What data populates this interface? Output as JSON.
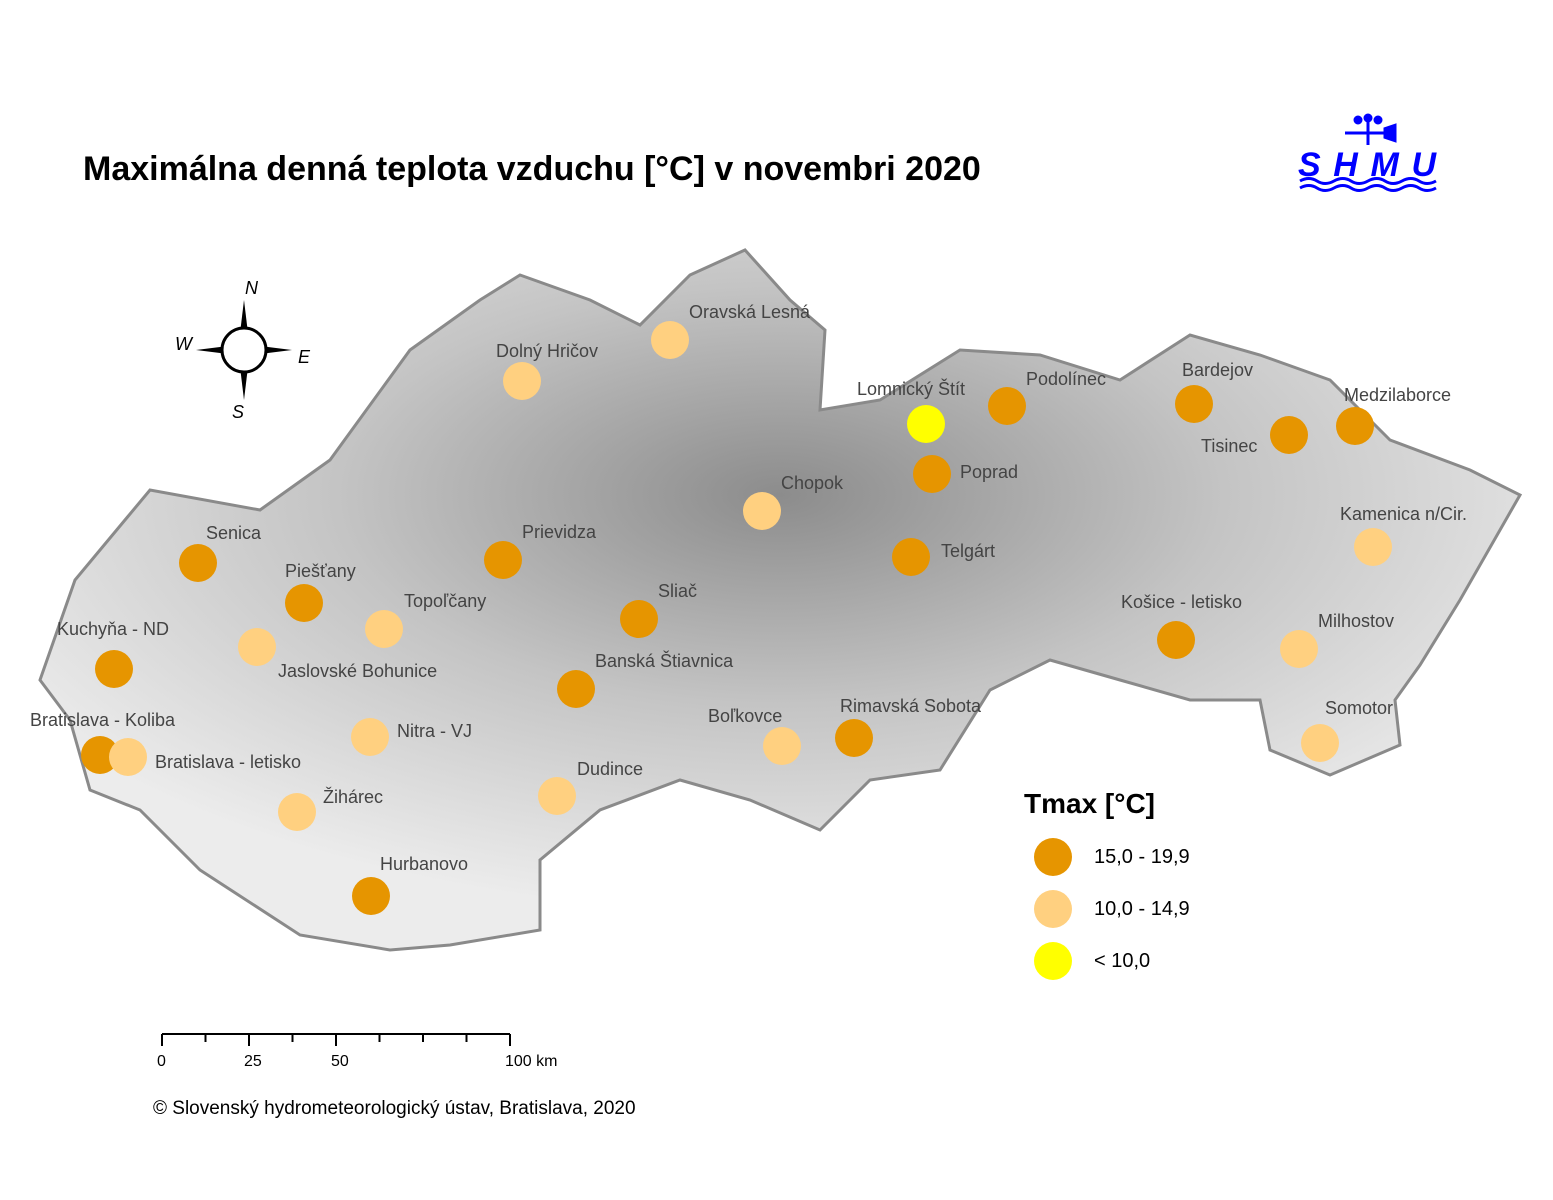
{
  "title": "Maximálna denná teplota vzduchu [°C] v novembri 2020",
  "logo_text": "SHMU",
  "compass": {
    "n": "N",
    "s": "S",
    "e": "E",
    "w": "W"
  },
  "colors": {
    "high": "#e69500",
    "mid": "#ffd080",
    "low": "#ffff00",
    "terrain": "#b5b5b5",
    "border": "#8a8a8a",
    "logo": "#0000ff"
  },
  "legend": {
    "title": "Tmax [°C]",
    "items": [
      {
        "label": "15,0 - 19,9",
        "category": "high"
      },
      {
        "label": "10,0 - 14,9",
        "category": "mid"
      },
      {
        "label": "< 10,0",
        "category": "low"
      }
    ]
  },
  "stations": [
    {
      "name": "Oravská Lesná",
      "category": "mid"
    },
    {
      "name": "Dolný Hričov",
      "category": "mid"
    },
    {
      "name": "Lomnický Štít",
      "category": "low"
    },
    {
      "name": "Podolínec",
      "category": "high"
    },
    {
      "name": "Bardejov",
      "category": "high"
    },
    {
      "name": "Tisinec",
      "category": "high"
    },
    {
      "name": "Medzilaborce",
      "category": "high"
    },
    {
      "name": "Poprad",
      "category": "high"
    },
    {
      "name": "Chopok",
      "category": "mid"
    },
    {
      "name": "Kamenica n/Cir.",
      "category": "mid"
    },
    {
      "name": "Prievidza",
      "category": "high"
    },
    {
      "name": "Senica",
      "category": "high"
    },
    {
      "name": "Telgárt",
      "category": "high"
    },
    {
      "name": "Piešťany",
      "category": "high"
    },
    {
      "name": "Topoľčany",
      "category": "mid"
    },
    {
      "name": "Sliač",
      "category": "high"
    },
    {
      "name": "Košice - letisko",
      "category": "high"
    },
    {
      "name": "Milhostov",
      "category": "mid"
    },
    {
      "name": "Kuchyňa - ND",
      "category": "high"
    },
    {
      "name": "Jaslovské Bohunice",
      "category": "mid"
    },
    {
      "name": "Banská Štiavnica",
      "category": "high"
    },
    {
      "name": "Bratislava - Koliba",
      "category": "high"
    },
    {
      "name": "Bratislava - letisko",
      "category": "mid"
    },
    {
      "name": "Nitra - VJ",
      "category": "mid"
    },
    {
      "name": "Boľkovce",
      "category": "mid"
    },
    {
      "name": "Rimavská Sobota",
      "category": "high"
    },
    {
      "name": "Somotor",
      "category": "mid"
    },
    {
      "name": "Dudince",
      "category": "mid"
    },
    {
      "name": "Žihárec",
      "category": "mid"
    },
    {
      "name": "Hurbanovo",
      "category": "high"
    }
  ],
  "scale_bar": {
    "ticks": [
      "0",
      "25",
      "50",
      "100 km"
    ],
    "max_km": 100
  },
  "copyright": "© Slovenský hydrometeorologický ústav, Bratislava, 2020"
}
